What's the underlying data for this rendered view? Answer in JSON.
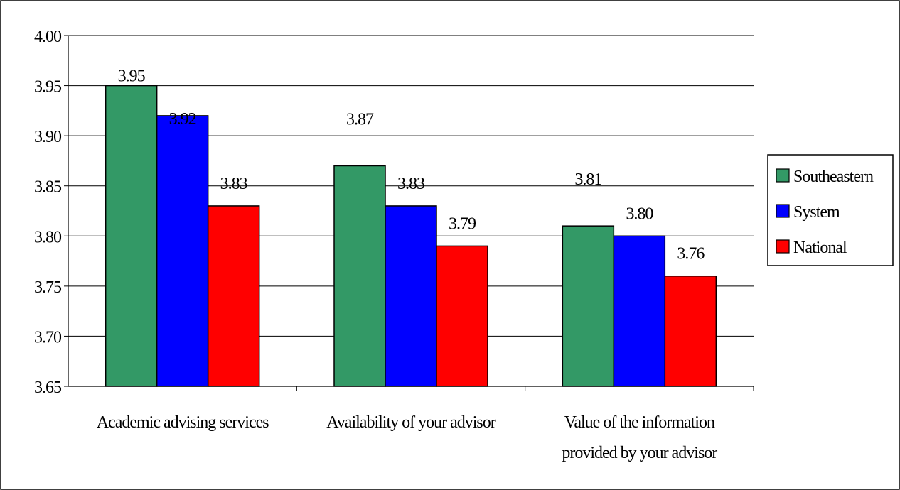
{
  "chart_data": {
    "type": "bar",
    "categories": [
      [
        "Academic advising services"
      ],
      [
        "Availability of your advisor"
      ],
      [
        "Value of the information",
        "provided by your advisor"
      ]
    ],
    "series": [
      {
        "name": "Southeastern",
        "color": "#339966",
        "values": [
          3.95,
          3.87,
          3.81
        ]
      },
      {
        "name": "System",
        "color": "#0000FF",
        "values": [
          3.92,
          3.83,
          3.8
        ]
      },
      {
        "name": "National",
        "color": "#FF0000",
        "values": [
          3.83,
          3.79,
          3.76
        ]
      }
    ],
    "data_labels": [
      [
        "3.95",
        "3.92",
        "3.83"
      ],
      [
        "3.87",
        "3.83",
        "3.79"
      ],
      [
        "3.81",
        "3.80",
        "3.76"
      ]
    ],
    "y_ticks": [
      "3.65",
      "3.70",
      "3.75",
      "3.80",
      "3.85",
      "3.90",
      "3.95",
      "4.00"
    ],
    "ylim": [
      3.65,
      4.0
    ],
    "grid": true,
    "legend_position": "right",
    "title": "",
    "xlabel": "",
    "ylabel": ""
  }
}
